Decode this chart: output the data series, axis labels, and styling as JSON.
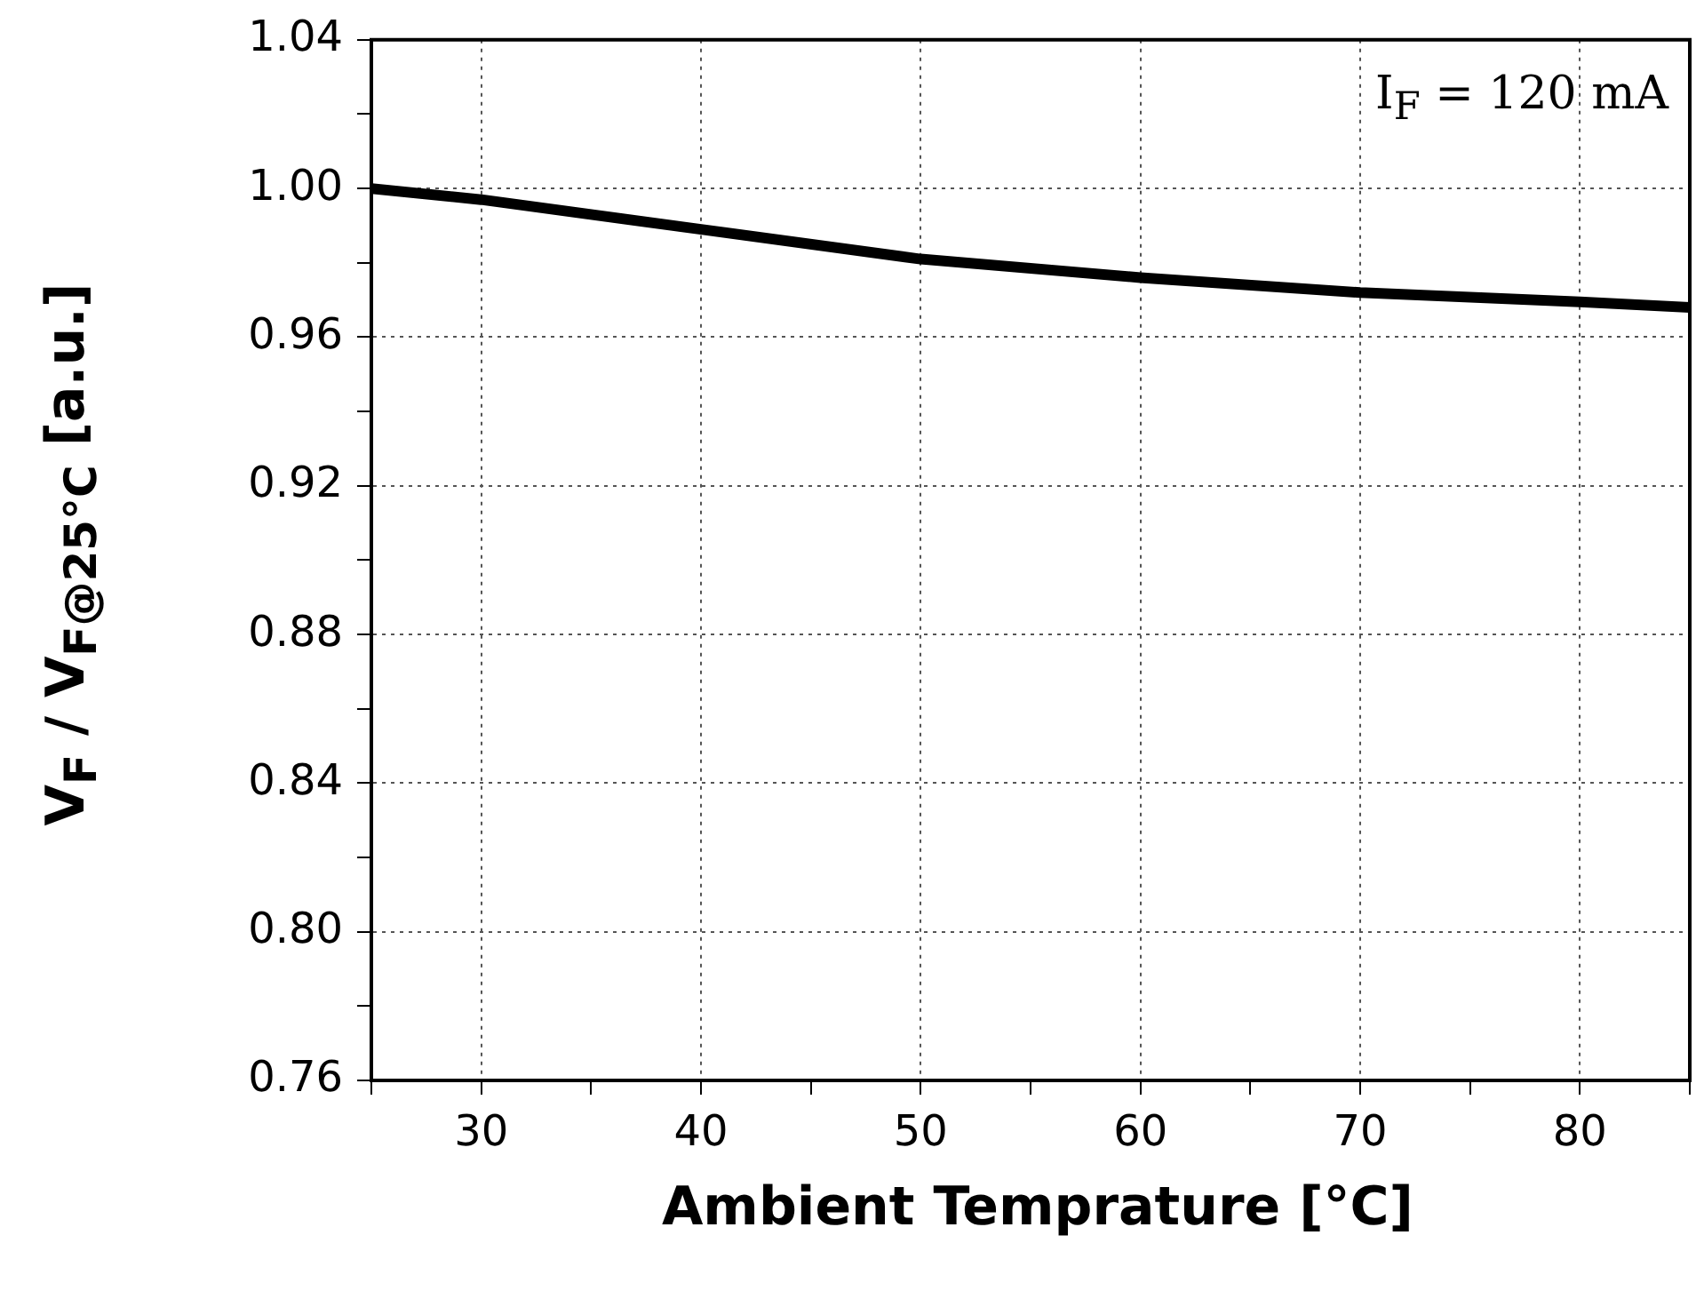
{
  "chart_data": {
    "type": "line",
    "xlabel": "Ambient Temprature [°C]",
    "ylabel": "V$_{F}$ / V$_{F@25°C}$ [a.u.]",
    "annotations": [
      "I$_{F}$ = 120 mA"
    ],
    "x": [
      25,
      30,
      40,
      50,
      60,
      70,
      80,
      85
    ],
    "series": [
      {
        "color": "#000000",
        "values": [
          1.0,
          0.997,
          0.989,
          0.981,
          0.976,
          0.972,
          0.9695,
          0.968
        ]
      }
    ],
    "xlim": [
      25,
      85
    ],
    "xticks": [
      {
        "value": 25,
        "label": null
      },
      30,
      {
        "value": 35,
        "label": null
      },
      40,
      {
        "value": 45,
        "label": null
      },
      50,
      {
        "value": 55,
        "label": null
      },
      60,
      {
        "value": 65,
        "label": null
      },
      70,
      {
        "value": 75,
        "label": null
      },
      80,
      {
        "value": 85,
        "label": null
      }
    ],
    "ylim": [
      0.76,
      1.04
    ],
    "yticks": [
      {
        "value": 0.76,
        "label": "0.76"
      },
      {
        "value": 0.78,
        "label": null
      },
      {
        "value": 0.8,
        "label": "0.80"
      },
      {
        "value": 0.82,
        "label": null
      },
      {
        "value": 0.84,
        "label": "0.84"
      },
      {
        "value": 0.86,
        "label": null
      },
      {
        "value": 0.88,
        "label": "0.88"
      },
      {
        "value": 0.9,
        "label": null
      },
      {
        "value": 0.92,
        "label": "0.92"
      },
      {
        "value": 0.94,
        "label": null
      },
      {
        "value": 0.96,
        "label": "0.96"
      },
      {
        "value": 0.98,
        "label": null
      },
      {
        "value": 1.0,
        "label": "1.00"
      },
      {
        "value": 1.02,
        "label": null
      },
      {
        "value": 1.04,
        "label": "1.04"
      }
    ],
    "grid": true,
    "legend": false,
    "marker": "none",
    "line_style": "solid"
  }
}
